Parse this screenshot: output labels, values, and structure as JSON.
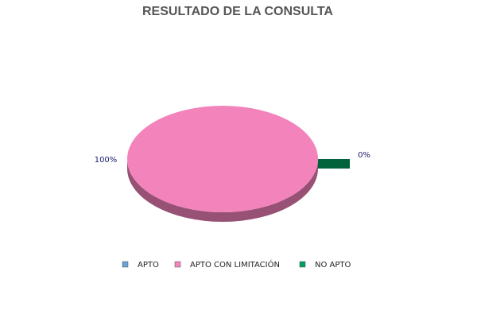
{
  "chart_data": {
    "type": "pie",
    "title": "RESULTADO DE LA CONSULTA",
    "categories": [
      "APTO",
      "APTO CON LIMITACIÓN",
      "NO APTO"
    ],
    "values": [
      0,
      100,
      0
    ],
    "value_labels": [
      null,
      "100%",
      "0%"
    ],
    "colors": [
      "#6a9fd8",
      "#f383bb",
      "#00a060"
    ],
    "legend": "bottom"
  }
}
